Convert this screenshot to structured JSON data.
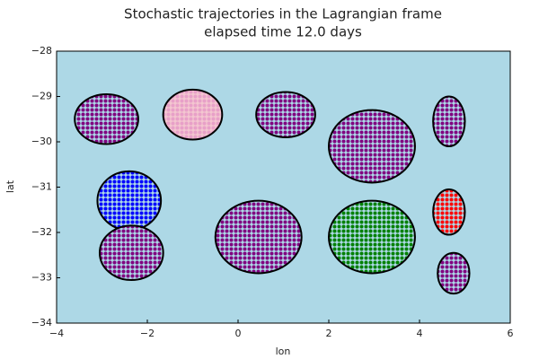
{
  "chart_data": {
    "type": "blob",
    "title": "Stochastic trajectories in the Lagrangian frame",
    "subtitle": "elapsed time 12.0 days",
    "x_label": "lon",
    "y_label": "lat",
    "xlim": [
      -4,
      6
    ],
    "ylim": [
      -34,
      -28
    ],
    "xticks": [
      {
        "value": -4,
        "label": "−4"
      },
      {
        "value": -2,
        "label": "−2"
      },
      0,
      2,
      4,
      6
    ],
    "yticks": [
      {
        "value": -34,
        "label": "−34"
      },
      {
        "value": -33,
        "label": "−33"
      },
      {
        "value": -32,
        "label": "−32"
      },
      {
        "value": -31,
        "label": "−31"
      },
      {
        "value": -30,
        "label": "−30"
      },
      {
        "value": -29,
        "label": "−29"
      },
      {
        "value": -28,
        "label": "−28"
      }
    ],
    "background": "#add8e6",
    "x": [
      -2.9,
      -1.0,
      1.05,
      2.95,
      4.65,
      -2.4,
      0.45,
      2.95,
      4.65,
      -2.35,
      4.75
    ],
    "y": [
      -29.5,
      -29.4,
      -29.4,
      -30.1,
      -29.55,
      -31.3,
      -32.1,
      -32.1,
      -31.55,
      -32.45,
      -32.9
    ],
    "x_radius": [
      0.7,
      0.65,
      0.65,
      0.95,
      0.35,
      0.7,
      0.95,
      0.95,
      0.35,
      0.7,
      0.35
    ],
    "y_radius": [
      0.55,
      0.55,
      0.5,
      0.8,
      0.55,
      0.65,
      0.8,
      0.8,
      0.5,
      0.6,
      0.45
    ],
    "colors": [
      "#800080",
      "#e8a0c8",
      "#800080",
      "#800080",
      "#800080",
      "#0000ff",
      "#800080",
      "#008000",
      "#ff0000",
      "#800080",
      "#800080"
    ],
    "fills": [
      "#add8e6",
      "#f4c6d0",
      "#add8e6",
      "#add8e6",
      "#add8e6",
      "#add8e6",
      "#add8e6",
      "#add8e6",
      "#add8e6",
      "#add8e6",
      "#add8e6"
    ]
  }
}
